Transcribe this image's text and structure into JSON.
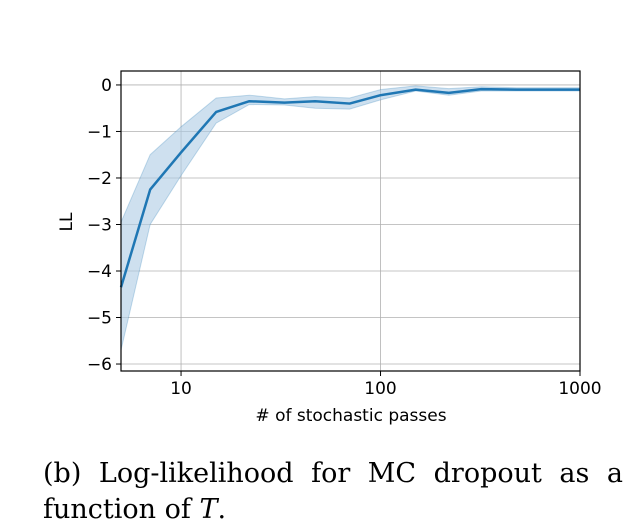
{
  "chart_data": {
    "type": "line",
    "title": "",
    "xlabel": "# of stochastic passes",
    "ylabel": "LL",
    "xscale": "log",
    "xlim": [
      5,
      1000
    ],
    "ylim": [
      -6.15,
      0.3
    ],
    "xticks": [
      {
        "value": 10,
        "label": "10"
      },
      {
        "value": 100,
        "label": "100"
      },
      {
        "value": 1000,
        "label": "1000"
      }
    ],
    "yticks": [
      {
        "value": 0,
        "label": "0"
      },
      {
        "value": -1,
        "label": "−1"
      },
      {
        "value": -2,
        "label": "−2"
      },
      {
        "value": -3,
        "label": "−3"
      },
      {
        "value": -4,
        "label": "−4"
      },
      {
        "value": -5,
        "label": "−5"
      },
      {
        "value": -6,
        "label": "−6"
      }
    ],
    "grid": true,
    "series": [
      {
        "name": "MC dropout",
        "color": "#1f77b4",
        "band_color": "#aecbe4",
        "x": [
          5,
          7,
          10,
          15,
          22,
          33,
          47,
          70,
          100,
          150,
          220,
          320,
          480,
          1000
        ],
        "y": [
          -4.35,
          -2.25,
          -1.45,
          -0.58,
          -0.35,
          -0.38,
          -0.35,
          -0.4,
          -0.22,
          -0.1,
          -0.17,
          -0.09,
          -0.1,
          -0.1
        ],
        "lower": [
          -5.7,
          -3.0,
          -1.95,
          -0.82,
          -0.42,
          -0.43,
          -0.5,
          -0.52,
          -0.32,
          -0.13,
          -0.22,
          -0.13,
          -0.13,
          -0.13
        ],
        "upper": [
          -2.95,
          -1.5,
          -0.9,
          -0.28,
          -0.22,
          -0.3,
          -0.25,
          -0.28,
          -0.1,
          -0.02,
          -0.08,
          -0.04,
          -0.06,
          -0.06
        ]
      }
    ]
  },
  "caption": {
    "line1": "(b) Log-likelihood for MC dropout as a",
    "line2_prefix": "function of ",
    "symbol": "T",
    "line2_suffix": "."
  }
}
